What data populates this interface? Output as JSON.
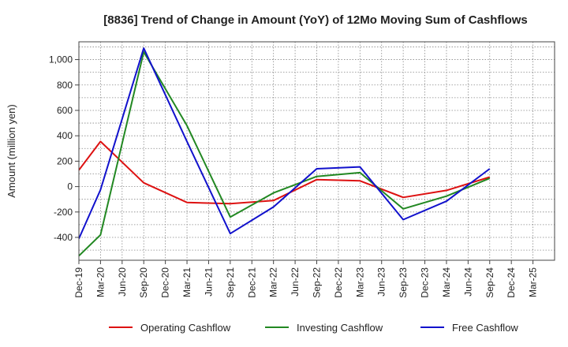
{
  "chart_data": {
    "type": "line",
    "title": "[8836]  Trend of Change in Amount (YoY) of 12Mo Moving Sum of Cashflows",
    "xlabel": "",
    "ylabel": "Amount (million yen)",
    "ylim": [
      -580,
      1140
    ],
    "yticks": [
      -400,
      -200,
      0,
      200,
      400,
      600,
      800,
      1000
    ],
    "ytick_labels": [
      "-400",
      "-200",
      "0",
      "200",
      "400",
      "600",
      "800",
      "1,000"
    ],
    "categories": [
      "Dec-19",
      "Mar-20",
      "Jun-20",
      "Sep-20",
      "Dec-20",
      "Mar-21",
      "Jun-21",
      "Sep-21",
      "Dec-21",
      "Mar-22",
      "Jun-22",
      "Sep-22",
      "Dec-22",
      "Mar-23",
      "Jun-23",
      "Sep-23",
      "Dec-23",
      "Mar-24",
      "Jun-24",
      "Sep-24",
      "Dec-24",
      "Mar-25"
    ],
    "grid": true,
    "legend_position": "bottom",
    "series": [
      {
        "name": "Operating Cashflow",
        "color": "#dd1111",
        "values": [
          130,
          355,
          null,
          30,
          null,
          -125,
          null,
          -135,
          null,
          -110,
          null,
          55,
          null,
          45,
          null,
          -85,
          null,
          -30,
          null,
          75,
          null,
          null
        ]
      },
      {
        "name": "Investing Cashflow",
        "color": "#228822",
        "values": [
          -545,
          -380,
          null,
          1060,
          null,
          480,
          null,
          -240,
          null,
          -50,
          null,
          80,
          null,
          110,
          null,
          -175,
          null,
          -75,
          null,
          65,
          null,
          null
        ]
      },
      {
        "name": "Free Cashflow",
        "color": "#1111cc",
        "values": [
          -410,
          -25,
          null,
          1090,
          null,
          355,
          null,
          -370,
          null,
          -160,
          null,
          140,
          null,
          155,
          null,
          -260,
          null,
          -115,
          null,
          140,
          null,
          null
        ]
      }
    ]
  }
}
